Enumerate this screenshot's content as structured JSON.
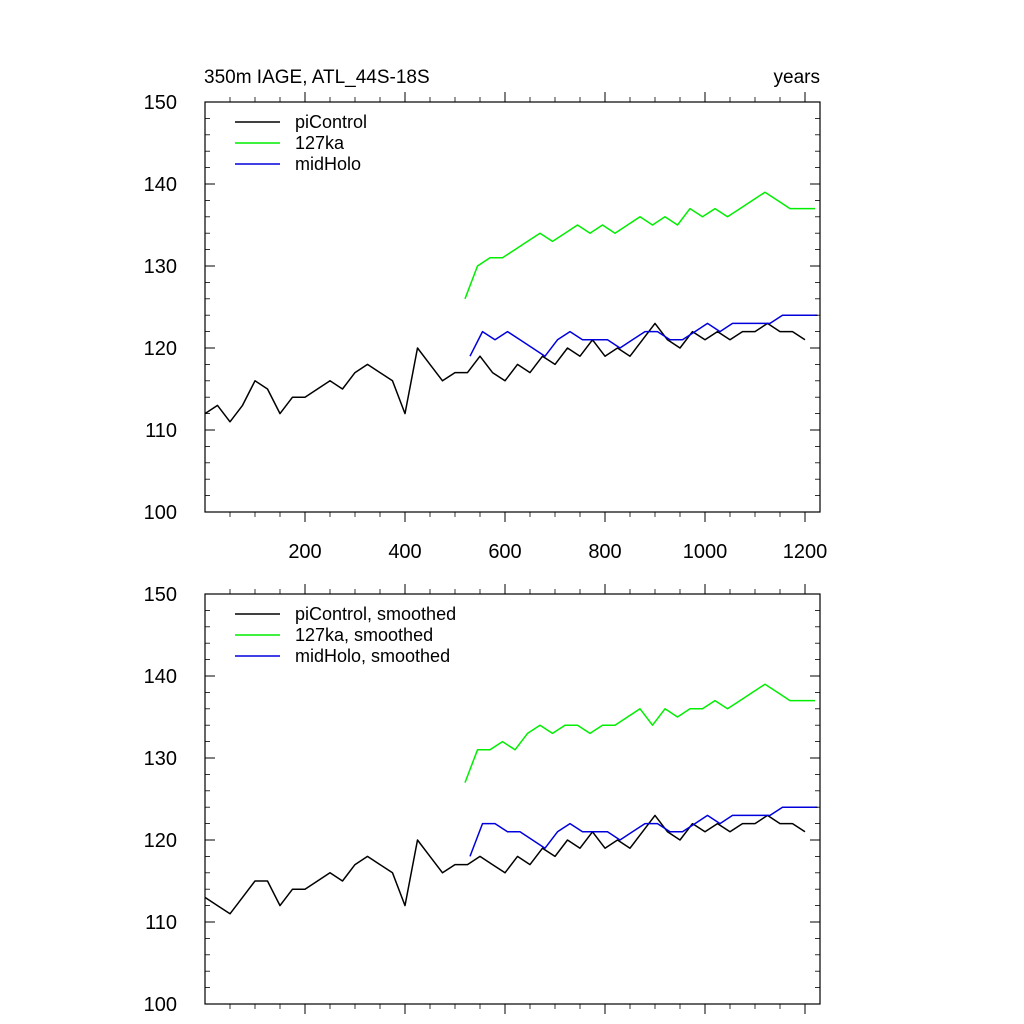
{
  "chart_data": [
    {
      "type": "line",
      "title_left": "350m IAGE, ATL_44S-18S",
      "title_right": "years",
      "xlim": [
        0,
        1230
      ],
      "ylim": [
        100,
        150
      ],
      "y_ticks": [
        100,
        110,
        120,
        130,
        140,
        150
      ],
      "x_ticks": [
        200,
        400,
        600,
        800,
        1000,
        1200
      ],
      "show_x_tick_labels": true,
      "legend_position": "top-left",
      "series": [
        {
          "name": "piControl",
          "color": "#000000",
          "x": [
            0,
            25,
            50,
            75,
            100,
            125,
            150,
            175,
            200,
            225,
            250,
            275,
            300,
            325,
            350,
            375,
            400,
            425,
            450,
            475,
            500,
            525,
            550,
            575,
            600,
            625,
            650,
            675,
            700,
            725,
            750,
            775,
            800,
            825,
            850,
            875,
            900,
            925,
            950,
            975,
            1000,
            1025,
            1050,
            1075,
            1100,
            1125,
            1150,
            1175,
            1200
          ],
          "values": [
            112,
            113,
            111,
            113,
            116,
            115,
            112,
            114,
            114,
            115,
            116,
            115,
            117,
            118,
            117,
            116,
            112,
            120,
            118,
            116,
            117,
            117,
            119,
            117,
            116,
            118,
            117,
            119,
            118,
            120,
            119,
            121,
            119,
            120,
            119,
            121,
            123,
            121,
            120,
            122,
            121,
            122,
            121,
            122,
            122,
            123,
            122,
            122,
            121
          ]
        },
        {
          "name": "127ka",
          "color": "#00ee00",
          "x": [
            520,
            545,
            570,
            595,
            620,
            645,
            670,
            695,
            720,
            745,
            770,
            795,
            820,
            845,
            870,
            895,
            920,
            945,
            970,
            995,
            1020,
            1045,
            1070,
            1095,
            1120,
            1145,
            1170,
            1195,
            1220
          ],
          "values": [
            126,
            130,
            131,
            131,
            132,
            133,
            134,
            133,
            134,
            135,
            134,
            135,
            134,
            135,
            136,
            135,
            136,
            135,
            137,
            136,
            137,
            136,
            137,
            138,
            139,
            138,
            137,
            137,
            137
          ]
        },
        {
          "name": "midHolo",
          "color": "#0000dd",
          "x": [
            530,
            555,
            580,
            605,
            630,
            655,
            680,
            705,
            730,
            755,
            780,
            805,
            830,
            855,
            880,
            905,
            930,
            955,
            980,
            1005,
            1030,
            1055,
            1080,
            1105,
            1130,
            1155,
            1180,
            1205,
            1225
          ],
          "values": [
            119,
            122,
            121,
            122,
            121,
            120,
            119,
            121,
            122,
            121,
            121,
            121,
            120,
            121,
            122,
            122,
            121,
            121,
            122,
            123,
            122,
            123,
            123,
            123,
            123,
            124,
            124,
            124,
            124
          ]
        }
      ]
    },
    {
      "type": "line",
      "title_left": "",
      "title_right": "",
      "xlim": [
        0,
        1230
      ],
      "ylim": [
        100,
        150
      ],
      "y_ticks": [
        100,
        110,
        120,
        130,
        140,
        150
      ],
      "x_ticks": [
        200,
        400,
        600,
        800,
        1000,
        1200
      ],
      "show_x_tick_labels": false,
      "legend_position": "top-left",
      "series": [
        {
          "name": "piControl, smoothed",
          "color": "#000000",
          "x": [
            0,
            25,
            50,
            75,
            100,
            125,
            150,
            175,
            200,
            225,
            250,
            275,
            300,
            325,
            350,
            375,
            400,
            425,
            450,
            475,
            500,
            525,
            550,
            575,
            600,
            625,
            650,
            675,
            700,
            725,
            750,
            775,
            800,
            825,
            850,
            875,
            900,
            925,
            950,
            975,
            1000,
            1025,
            1050,
            1075,
            1100,
            1125,
            1150,
            1175,
            1200
          ],
          "values": [
            113,
            112,
            111,
            113,
            115,
            115,
            112,
            114,
            114,
            115,
            116,
            115,
            117,
            118,
            117,
            116,
            112,
            120,
            118,
            116,
            117,
            117,
            118,
            117,
            116,
            118,
            117,
            119,
            118,
            120,
            119,
            121,
            119,
            120,
            119,
            121,
            123,
            121,
            120,
            122,
            121,
            122,
            121,
            122,
            122,
            123,
            122,
            122,
            121
          ]
        },
        {
          "name": "127ka, smoothed",
          "color": "#00ee00",
          "x": [
            520,
            545,
            570,
            595,
            620,
            645,
            670,
            695,
            720,
            745,
            770,
            795,
            820,
            845,
            870,
            895,
            920,
            945,
            970,
            995,
            1020,
            1045,
            1070,
            1095,
            1120,
            1145,
            1170,
            1195,
            1220
          ],
          "values": [
            127,
            131,
            131,
            132,
            131,
            133,
            134,
            133,
            134,
            134,
            133,
            134,
            134,
            135,
            136,
            134,
            136,
            135,
            136,
            136,
            137,
            136,
            137,
            138,
            139,
            138,
            137,
            137,
            137
          ]
        },
        {
          "name": "midHolo, smoothed",
          "color": "#0000dd",
          "x": [
            530,
            555,
            580,
            605,
            630,
            655,
            680,
            705,
            730,
            755,
            780,
            805,
            830,
            855,
            880,
            905,
            930,
            955,
            980,
            1005,
            1030,
            1055,
            1080,
            1105,
            1130,
            1155,
            1180,
            1205,
            1225
          ],
          "values": [
            118,
            122,
            122,
            121,
            121,
            120,
            119,
            121,
            122,
            121,
            121,
            121,
            120,
            121,
            122,
            122,
            121,
            121,
            122,
            123,
            122,
            123,
            123,
            123,
            123,
            124,
            124,
            124,
            124
          ]
        }
      ]
    }
  ]
}
